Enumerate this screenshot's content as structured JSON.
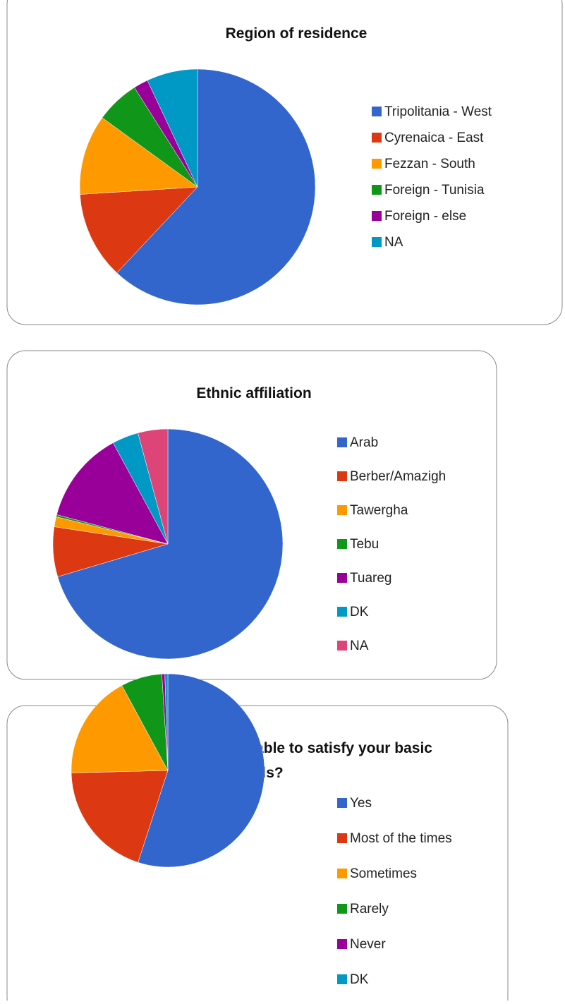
{
  "chart_data": [
    {
      "type": "pie",
      "title": "Region of residence",
      "categories": [
        "Tripolitania - West",
        "Cyrenaica - East",
        "Fezzan - South",
        "Foreign - Tunisia",
        "Foreign - else",
        "NA"
      ],
      "values": [
        62,
        12,
        11,
        6,
        2,
        7
      ],
      "colors": [
        "#3366cc",
        "#dc3912",
        "#ff9900",
        "#109618",
        "#990099",
        "#0099c6"
      ]
    },
    {
      "type": "pie",
      "title": "Ethnic  affiliation",
      "categories": [
        "Arab",
        "Berber/Amazigh",
        "Tawergha",
        "Tebu",
        "Tuareg",
        "DK",
        "NA"
      ],
      "values": [
        70.4,
        7,
        1.4,
        0.3,
        13,
        3.7,
        4.2
      ],
      "colors": [
        "#3366cc",
        "#dc3912",
        "#ff9900",
        "#109618",
        "#990099",
        "#0099c6",
        "#dd4477"
      ]
    },
    {
      "type": "pie",
      "title": "Are you and your family able to satisfy your basic needs?",
      "categories": [
        "Yes",
        "Most of the times",
        "Sometimes",
        "Rarely",
        "Never",
        "DK"
      ],
      "values": [
        55,
        19.6,
        17.5,
        6.9,
        0.5,
        0.5
      ],
      "colors": [
        "#3366cc",
        "#dc3912",
        "#ff9900",
        "#109618",
        "#990099",
        "#0099c6"
      ]
    }
  ]
}
